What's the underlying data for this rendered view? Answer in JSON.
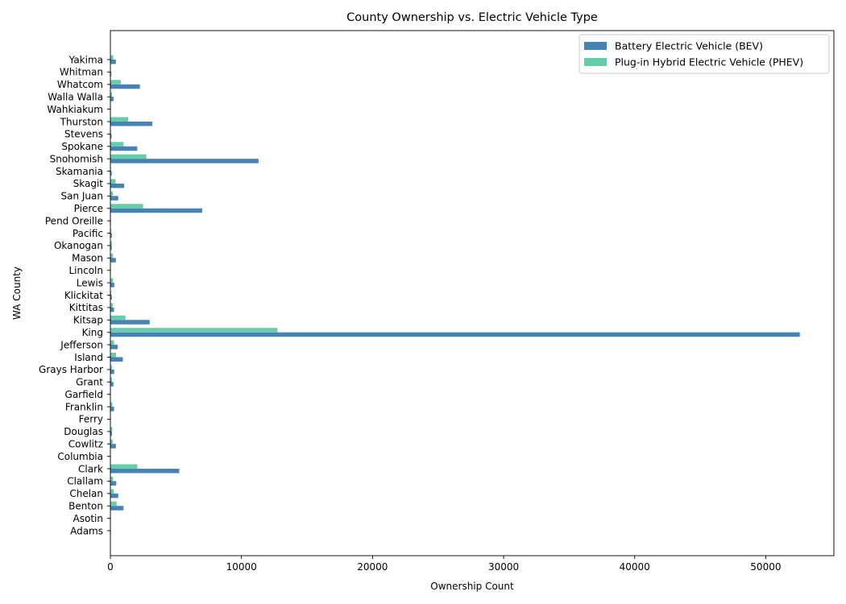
{
  "chart_data": {
    "type": "bar",
    "orientation": "horizontal",
    "title": "County Ownership vs. Electric Vehicle Type",
    "xlabel": "Ownership Count",
    "ylabel": "WA County",
    "xlim": [
      0,
      55200
    ],
    "xticks": [
      0,
      10000,
      20000,
      30000,
      40000,
      50000
    ],
    "xtick_labels": [
      "0",
      "10000",
      "20000",
      "30000",
      "40000",
      "50000"
    ],
    "grid": false,
    "legend_position": "top-right",
    "categories": [
      "Adams",
      "Asotin",
      "Benton",
      "Chelan",
      "Clallam",
      "Clark",
      "Columbia",
      "Cowlitz",
      "Douglas",
      "Ferry",
      "Franklin",
      "Garfield",
      "Grant",
      "Grays Harbor",
      "Island",
      "Jefferson",
      "King",
      "Kitsap",
      "Kittitas",
      "Klickitat",
      "Lewis",
      "Lincoln",
      "Mason",
      "Okanogan",
      "Pacific",
      "Pend Oreille",
      "Pierce",
      "San Juan",
      "Skagit",
      "Skamania",
      "Snohomish",
      "Spokane",
      "Stevens",
      "Thurston",
      "Wahkiakum",
      "Walla Walla",
      "Whatcom",
      "Whitman",
      "Yakima"
    ],
    "series": [
      {
        "name": "Battery Electric Vehicle (BEV)",
        "color": "#4682b4",
        "values": [
          40,
          30,
          1000,
          600,
          450,
          5250,
          15,
          420,
          120,
          20,
          280,
          5,
          230,
          290,
          950,
          560,
          52600,
          3000,
          280,
          110,
          300,
          30,
          420,
          100,
          110,
          40,
          7000,
          600,
          1050,
          100,
          11300,
          2050,
          90,
          3200,
          15,
          240,
          2250,
          70,
          420
        ]
      },
      {
        "name": "Plug-in Hybrid Electric Vehicle (PHEV)",
        "color": "#66cdaa",
        "values": [
          20,
          20,
          480,
          250,
          200,
          2050,
          10,
          180,
          150,
          10,
          150,
          5,
          120,
          120,
          430,
          280,
          12750,
          1150,
          180,
          60,
          200,
          20,
          200,
          120,
          60,
          30,
          2500,
          200,
          400,
          40,
          2750,
          1000,
          40,
          1350,
          10,
          120,
          800,
          30,
          220
        ]
      }
    ]
  }
}
